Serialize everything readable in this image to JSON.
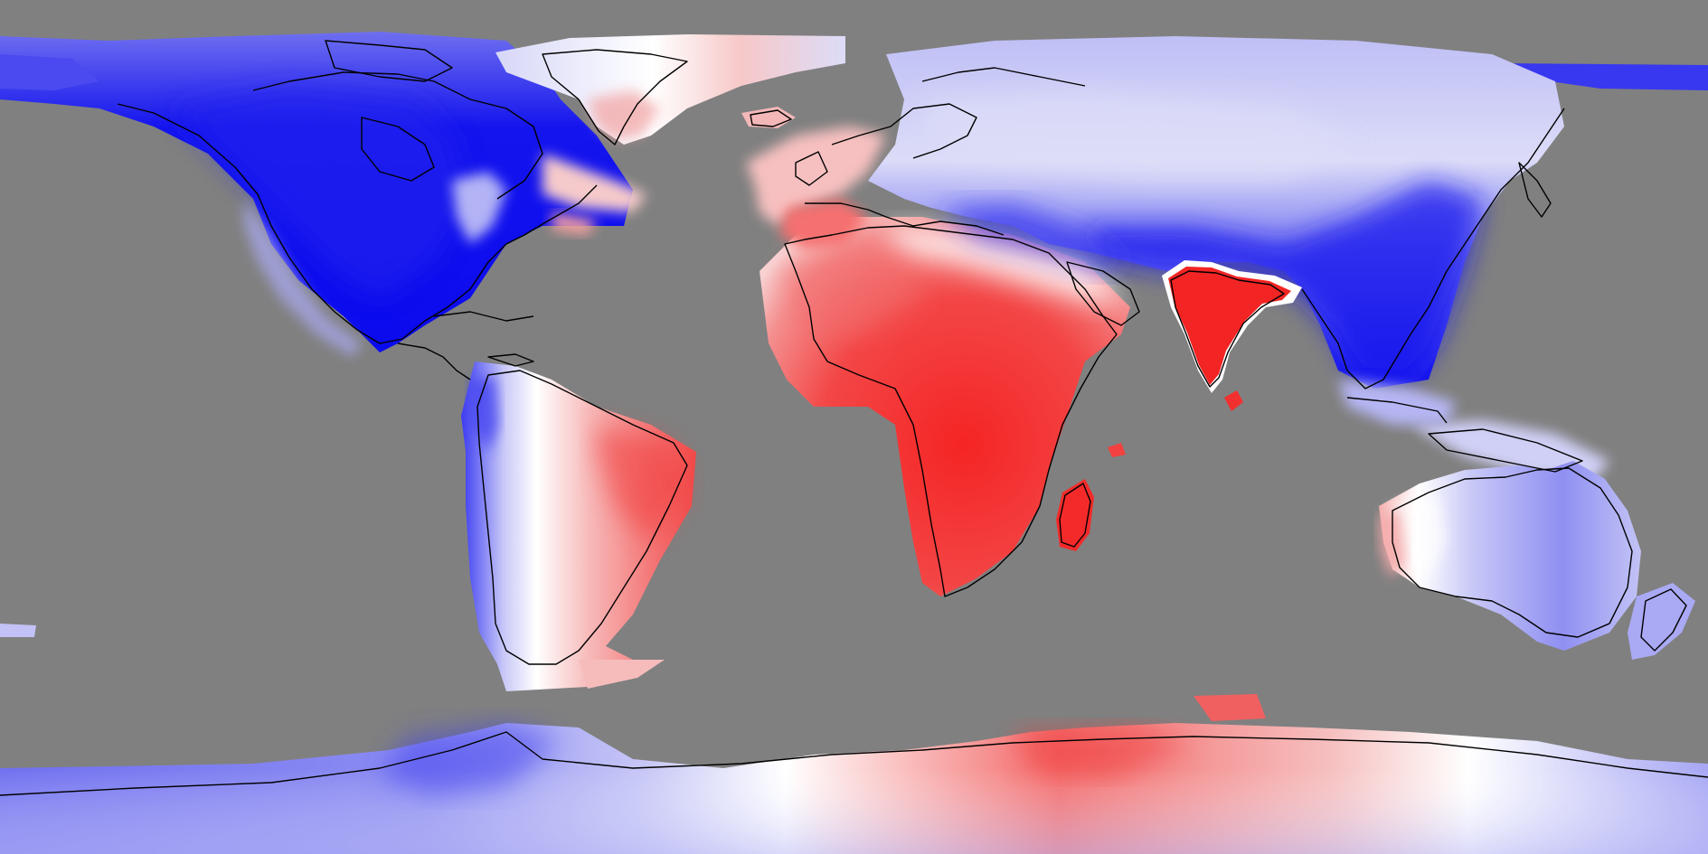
{
  "map": {
    "projection": "equirectangular",
    "background_color": "#808080",
    "coastline_color": "#000000",
    "colormap": [
      "#0000ff",
      "#ffffff",
      "#ff0000"
    ],
    "colors": {
      "strong_blue": "#0a0af0",
      "medium_blue": "#5050f0",
      "light_blue": "#aeaef5",
      "very_light_blue": "#dcdcf8",
      "white": "#ffffff",
      "very_light_red": "#f8d8d8",
      "light_red": "#f5a8a8",
      "medium_red": "#f26060",
      "strong_red": "#f52020"
    }
  }
}
